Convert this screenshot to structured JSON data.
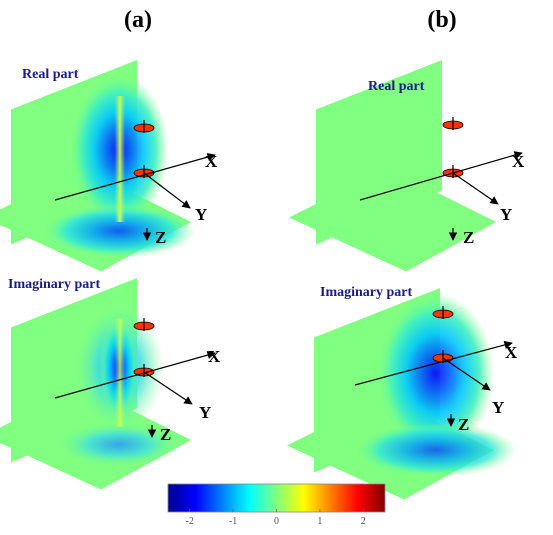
{
  "columns": [
    {
      "title": "(a)"
    },
    {
      "title": "(b)"
    }
  ],
  "panels": {
    "a_real": {
      "label": "Real part",
      "x_axis": "X",
      "y_axis": "Y",
      "z_axis": "Z"
    },
    "b_real": {
      "label": "Real part",
      "x_axis": "X",
      "y_axis": "Y",
      "z_axis": "Z"
    },
    "a_imag": {
      "label": "Imaginary part",
      "x_axis": "X",
      "y_axis": "Y",
      "z_axis": "Z"
    },
    "b_imag": {
      "label": "Imaginary part",
      "x_axis": "X",
      "y_axis": "Y",
      "z_axis": "Z"
    }
  },
  "colorbar": {
    "ticks": [
      "-2",
      "-1",
      "0",
      "1",
      "2"
    ],
    "range": [
      -2.5,
      2.5
    ],
    "colors": [
      "#00008f",
      "#0000ff",
      "#0080ff",
      "#00ffff",
      "#80ff80",
      "#ffff00",
      "#ff8000",
      "#ff0000",
      "#800000"
    ]
  },
  "colors": {
    "plane": "#80ff80",
    "dipole": "#ff3300",
    "label_blue": "#1a1a8c"
  }
}
